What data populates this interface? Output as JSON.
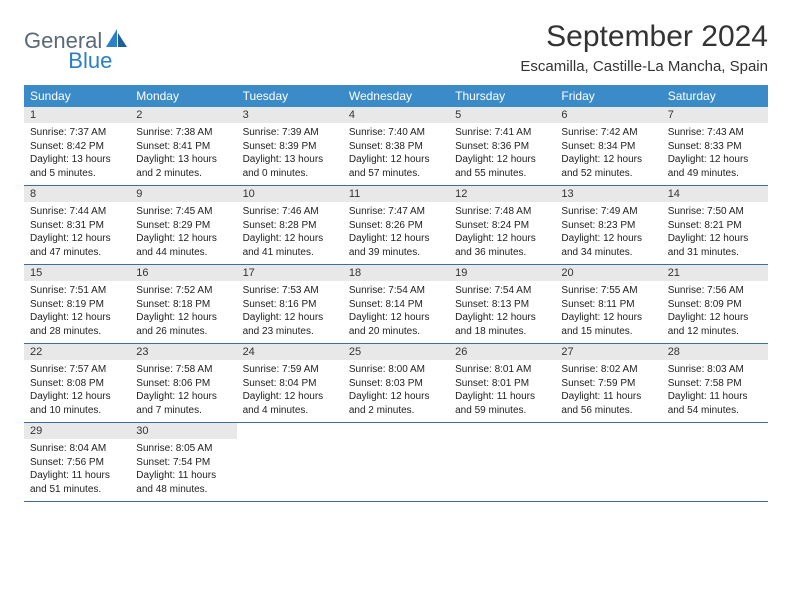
{
  "logo": {
    "text1": "General",
    "text2": "Blue"
  },
  "title": "September 2024",
  "location": "Escamilla, Castille-La Mancha, Spain",
  "colors": {
    "header_bar": "#3b8bc9",
    "week_divider": "#3b6fa0",
    "daynum_bg": "#e8e8e8",
    "logo_gray": "#5a6a78",
    "logo_blue": "#2a7fc7"
  },
  "daysOfWeek": [
    "Sunday",
    "Monday",
    "Tuesday",
    "Wednesday",
    "Thursday",
    "Friday",
    "Saturday"
  ],
  "weeks": [
    [
      {
        "n": "1",
        "sr": "Sunrise: 7:37 AM",
        "ss": "Sunset: 8:42 PM",
        "dl": "Daylight: 13 hours and 5 minutes."
      },
      {
        "n": "2",
        "sr": "Sunrise: 7:38 AM",
        "ss": "Sunset: 8:41 PM",
        "dl": "Daylight: 13 hours and 2 minutes."
      },
      {
        "n": "3",
        "sr": "Sunrise: 7:39 AM",
        "ss": "Sunset: 8:39 PM",
        "dl": "Daylight: 13 hours and 0 minutes."
      },
      {
        "n": "4",
        "sr": "Sunrise: 7:40 AM",
        "ss": "Sunset: 8:38 PM",
        "dl": "Daylight: 12 hours and 57 minutes."
      },
      {
        "n": "5",
        "sr": "Sunrise: 7:41 AM",
        "ss": "Sunset: 8:36 PM",
        "dl": "Daylight: 12 hours and 55 minutes."
      },
      {
        "n": "6",
        "sr": "Sunrise: 7:42 AM",
        "ss": "Sunset: 8:34 PM",
        "dl": "Daylight: 12 hours and 52 minutes."
      },
      {
        "n": "7",
        "sr": "Sunrise: 7:43 AM",
        "ss": "Sunset: 8:33 PM",
        "dl": "Daylight: 12 hours and 49 minutes."
      }
    ],
    [
      {
        "n": "8",
        "sr": "Sunrise: 7:44 AM",
        "ss": "Sunset: 8:31 PM",
        "dl": "Daylight: 12 hours and 47 minutes."
      },
      {
        "n": "9",
        "sr": "Sunrise: 7:45 AM",
        "ss": "Sunset: 8:29 PM",
        "dl": "Daylight: 12 hours and 44 minutes."
      },
      {
        "n": "10",
        "sr": "Sunrise: 7:46 AM",
        "ss": "Sunset: 8:28 PM",
        "dl": "Daylight: 12 hours and 41 minutes."
      },
      {
        "n": "11",
        "sr": "Sunrise: 7:47 AM",
        "ss": "Sunset: 8:26 PM",
        "dl": "Daylight: 12 hours and 39 minutes."
      },
      {
        "n": "12",
        "sr": "Sunrise: 7:48 AM",
        "ss": "Sunset: 8:24 PM",
        "dl": "Daylight: 12 hours and 36 minutes."
      },
      {
        "n": "13",
        "sr": "Sunrise: 7:49 AM",
        "ss": "Sunset: 8:23 PM",
        "dl": "Daylight: 12 hours and 34 minutes."
      },
      {
        "n": "14",
        "sr": "Sunrise: 7:50 AM",
        "ss": "Sunset: 8:21 PM",
        "dl": "Daylight: 12 hours and 31 minutes."
      }
    ],
    [
      {
        "n": "15",
        "sr": "Sunrise: 7:51 AM",
        "ss": "Sunset: 8:19 PM",
        "dl": "Daylight: 12 hours and 28 minutes."
      },
      {
        "n": "16",
        "sr": "Sunrise: 7:52 AM",
        "ss": "Sunset: 8:18 PM",
        "dl": "Daylight: 12 hours and 26 minutes."
      },
      {
        "n": "17",
        "sr": "Sunrise: 7:53 AM",
        "ss": "Sunset: 8:16 PM",
        "dl": "Daylight: 12 hours and 23 minutes."
      },
      {
        "n": "18",
        "sr": "Sunrise: 7:54 AM",
        "ss": "Sunset: 8:14 PM",
        "dl": "Daylight: 12 hours and 20 minutes."
      },
      {
        "n": "19",
        "sr": "Sunrise: 7:54 AM",
        "ss": "Sunset: 8:13 PM",
        "dl": "Daylight: 12 hours and 18 minutes."
      },
      {
        "n": "20",
        "sr": "Sunrise: 7:55 AM",
        "ss": "Sunset: 8:11 PM",
        "dl": "Daylight: 12 hours and 15 minutes."
      },
      {
        "n": "21",
        "sr": "Sunrise: 7:56 AM",
        "ss": "Sunset: 8:09 PM",
        "dl": "Daylight: 12 hours and 12 minutes."
      }
    ],
    [
      {
        "n": "22",
        "sr": "Sunrise: 7:57 AM",
        "ss": "Sunset: 8:08 PM",
        "dl": "Daylight: 12 hours and 10 minutes."
      },
      {
        "n": "23",
        "sr": "Sunrise: 7:58 AM",
        "ss": "Sunset: 8:06 PM",
        "dl": "Daylight: 12 hours and 7 minutes."
      },
      {
        "n": "24",
        "sr": "Sunrise: 7:59 AM",
        "ss": "Sunset: 8:04 PM",
        "dl": "Daylight: 12 hours and 4 minutes."
      },
      {
        "n": "25",
        "sr": "Sunrise: 8:00 AM",
        "ss": "Sunset: 8:03 PM",
        "dl": "Daylight: 12 hours and 2 minutes."
      },
      {
        "n": "26",
        "sr": "Sunrise: 8:01 AM",
        "ss": "Sunset: 8:01 PM",
        "dl": "Daylight: 11 hours and 59 minutes."
      },
      {
        "n": "27",
        "sr": "Sunrise: 8:02 AM",
        "ss": "Sunset: 7:59 PM",
        "dl": "Daylight: 11 hours and 56 minutes."
      },
      {
        "n": "28",
        "sr": "Sunrise: 8:03 AM",
        "ss": "Sunset: 7:58 PM",
        "dl": "Daylight: 11 hours and 54 minutes."
      }
    ],
    [
      {
        "n": "29",
        "sr": "Sunrise: 8:04 AM",
        "ss": "Sunset: 7:56 PM",
        "dl": "Daylight: 11 hours and 51 minutes."
      },
      {
        "n": "30",
        "sr": "Sunrise: 8:05 AM",
        "ss": "Sunset: 7:54 PM",
        "dl": "Daylight: 11 hours and 48 minutes."
      },
      {
        "empty": true
      },
      {
        "empty": true
      },
      {
        "empty": true
      },
      {
        "empty": true
      },
      {
        "empty": true
      }
    ]
  ]
}
